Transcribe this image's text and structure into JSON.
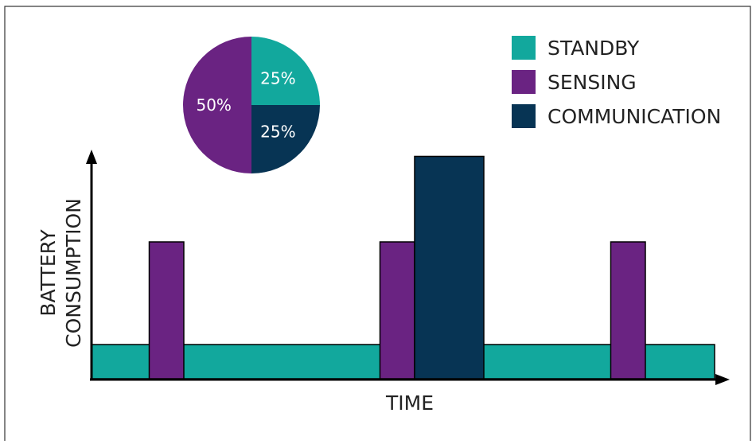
{
  "colors": {
    "standby": "#12A89D",
    "sensing": "#6A2382",
    "communication": "#073454",
    "outline": "#000000",
    "label_on_dark": "#ffffff"
  },
  "legend": {
    "items": [
      {
        "label": "STANDBY",
        "color": "#12A89D"
      },
      {
        "label": "SENSING",
        "color": "#6A2382"
      },
      {
        "label": "COMMUNICATION",
        "color": "#073454"
      }
    ]
  },
  "axes": {
    "y_label_line1": "BATTERY",
    "y_label_line2": "CONSUMPTION",
    "x_label": "TIME"
  },
  "pie": {
    "slices": [
      {
        "name": "STANDBY",
        "value": 25,
        "label": "25%",
        "color": "#12A89D"
      },
      {
        "name": "COMMUNICATION",
        "value": 25,
        "label": "25%",
        "color": "#073454"
      },
      {
        "name": "SENSING",
        "value": 50,
        "label": "50%",
        "color": "#6A2382"
      }
    ]
  },
  "timeline": {
    "levels": {
      "standby": 1,
      "sensing": 4,
      "communication": 6.5
    },
    "segments": [
      {
        "mode": "sensing",
        "start": 1,
        "end": 1.6
      },
      {
        "mode": "sensing",
        "start": 5,
        "end": 5.6
      },
      {
        "mode": "communication",
        "start": 5.6,
        "end": 6.8
      },
      {
        "mode": "sensing",
        "start": 9,
        "end": 9.6
      }
    ],
    "standby_start": 0,
    "standby_end": 10.8
  }
}
